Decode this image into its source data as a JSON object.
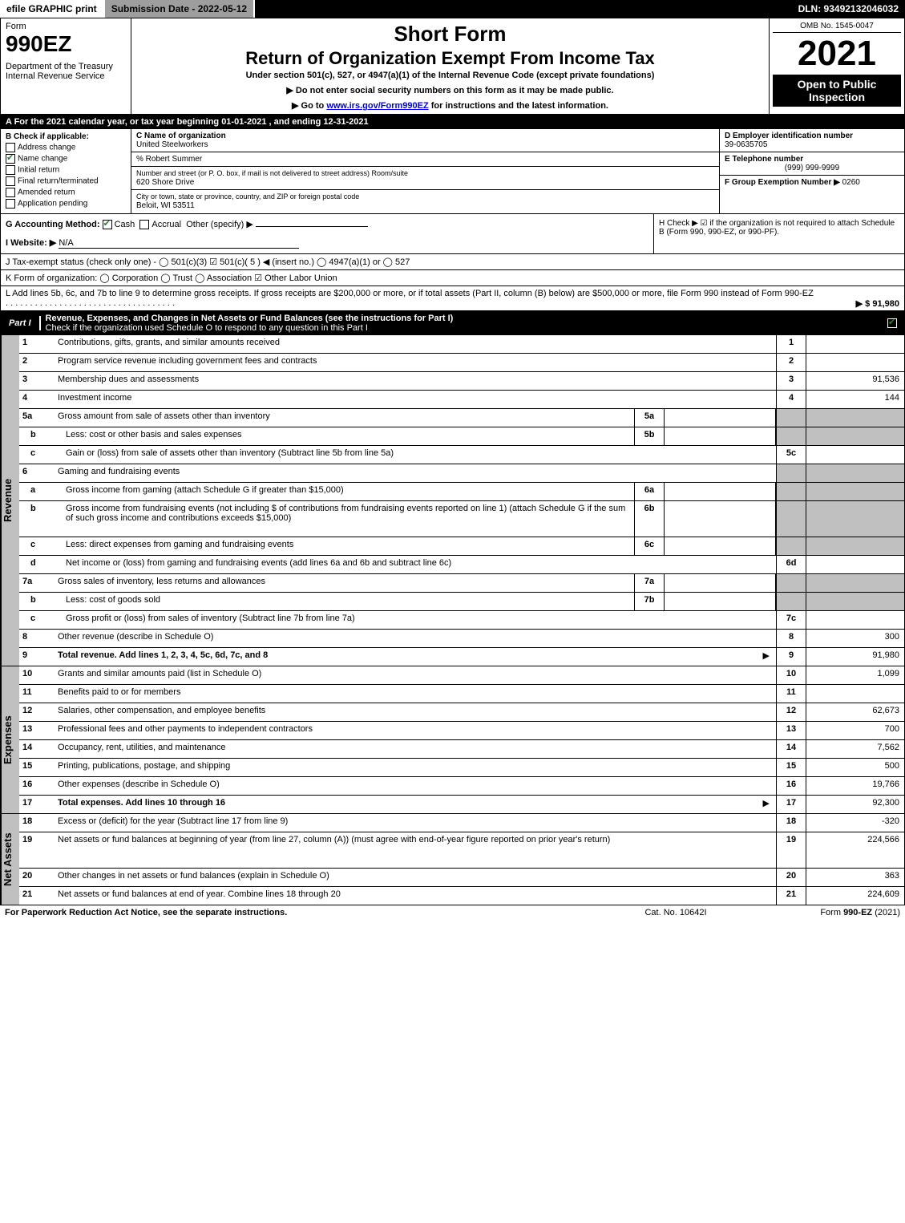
{
  "topbar": {
    "efile": "efile GRAPHIC print",
    "submission": "Submission Date - 2022-05-12",
    "dln": "DLN: 93492132046032"
  },
  "header": {
    "form_word": "Form",
    "form_no": "990EZ",
    "dept": "Department of the Treasury\nInternal Revenue Service",
    "short_form": "Short Form",
    "return_title": "Return of Organization Exempt From Income Tax",
    "under": "Under section 501(c), 527, or 4947(a)(1) of the Internal Revenue Code (except private foundations)",
    "instr1": "▶ Do not enter social security numbers on this form as it may be made public.",
    "instr2_pre": "▶ Go to ",
    "instr2_link": "www.irs.gov/Form990EZ",
    "instr2_post": " for instructions and the latest information.",
    "omb": "OMB No. 1545-0047",
    "year": "2021",
    "badge": "Open to Public Inspection"
  },
  "lineA": "A  For the 2021 calendar year, or tax year beginning 01-01-2021 , and ending 12-31-2021",
  "boxB": {
    "title": "B  Check if applicable:",
    "items": [
      {
        "label": "Address change",
        "checked": false
      },
      {
        "label": "Name change",
        "checked": true
      },
      {
        "label": "Initial return",
        "checked": false
      },
      {
        "label": "Final return/terminated",
        "checked": false
      },
      {
        "label": "Amended return",
        "checked": false
      },
      {
        "label": "Application pending",
        "checked": false
      }
    ]
  },
  "boxC": {
    "name_label": "C Name of organization",
    "name": "United Steelworkers",
    "care_of": "% Robert Summer",
    "street_label": "Number and street (or P. O. box, if mail is not delivered to street address)      Room/suite",
    "street": "620 Shore Drive",
    "city_label": "City or town, state or province, country, and ZIP or foreign postal code",
    "city": "Beloit, WI  53511"
  },
  "boxD": {
    "ein_label": "D Employer identification number",
    "ein": "39-0635705",
    "tel_label": "E Telephone number",
    "tel": "(999) 999-9999",
    "group_label": "F Group Exemption Number  ▶",
    "group": "0260"
  },
  "lineG": {
    "label": "G Accounting Method:",
    "cash": "Cash",
    "accrual": "Accrual",
    "other": "Other (specify) ▶"
  },
  "lineH": "H  Check ▶ ☑ if the organization is not required to attach Schedule B (Form 990, 990-EZ, or 990-PF).",
  "lineI": {
    "label": "I Website: ▶",
    "val": "N/A"
  },
  "lineJ": "J Tax-exempt status (check only one) - ◯ 501(c)(3)  ☑ 501(c)( 5 ) ◀ (insert no.)  ◯ 4947(a)(1) or  ◯ 527",
  "lineK": "K Form of organization:  ◯ Corporation  ◯ Trust  ◯ Association  ☑ Other Labor Union",
  "lineL": {
    "text": "L Add lines 5b, 6c, and 7b to line 9 to determine gross receipts. If gross receipts are $200,000 or more, or if total assets (Part II, column (B) below) are $500,000 or more, file Form 990 instead of Form 990-EZ",
    "amount": "▶ $ 91,980"
  },
  "part1": {
    "tag": "Part I",
    "title": "Revenue, Expenses, and Changes in Net Assets or Fund Balances (see the instructions for Part I)",
    "sub": "Check if the organization used Schedule O to respond to any question in this Part I"
  },
  "revenue": {
    "label": "Revenue",
    "rows": [
      {
        "n": "1",
        "desc": "Contributions, gifts, grants, and similar amounts received",
        "rnum": "1",
        "rval": ""
      },
      {
        "n": "2",
        "desc": "Program service revenue including government fees and contracts",
        "rnum": "2",
        "rval": ""
      },
      {
        "n": "3",
        "desc": "Membership dues and assessments",
        "rnum": "3",
        "rval": "91,536"
      },
      {
        "n": "4",
        "desc": "Investment income",
        "rnum": "4",
        "rval": "144"
      },
      {
        "n": "5a",
        "desc": "Gross amount from sale of assets other than inventory",
        "mid": "5a",
        "shade": true
      },
      {
        "n": "b",
        "sub": true,
        "desc": "Less: cost or other basis and sales expenses",
        "mid": "5b",
        "shade": true
      },
      {
        "n": "c",
        "sub": true,
        "desc": "Gain or (loss) from sale of assets other than inventory (Subtract line 5b from line 5a)",
        "rnum": "5c",
        "rval": ""
      },
      {
        "n": "6",
        "desc": "Gaming and fundraising events",
        "shade_r": true
      },
      {
        "n": "a",
        "sub": true,
        "desc": "Gross income from gaming (attach Schedule G if greater than $15,000)",
        "mid": "6a",
        "shade": true
      },
      {
        "n": "b",
        "sub": true,
        "desc": "Gross income from fundraising events (not including $                      of contributions from fundraising events reported on line 1) (attach Schedule G if the sum of such gross income and contributions exceeds $15,000)",
        "mid": "6b",
        "shade": true,
        "tall": true
      },
      {
        "n": "c",
        "sub": true,
        "desc": "Less: direct expenses from gaming and fundraising events",
        "mid": "6c",
        "shade": true
      },
      {
        "n": "d",
        "sub": true,
        "desc": "Net income or (loss) from gaming and fundraising events (add lines 6a and 6b and subtract line 6c)",
        "rnum": "6d",
        "rval": ""
      },
      {
        "n": "7a",
        "desc": "Gross sales of inventory, less returns and allowances",
        "mid": "7a",
        "shade": true
      },
      {
        "n": "b",
        "sub": true,
        "desc": "Less: cost of goods sold",
        "mid": "7b",
        "shade": true
      },
      {
        "n": "c",
        "sub": true,
        "desc": "Gross profit or (loss) from sales of inventory (Subtract line 7b from line 7a)",
        "rnum": "7c",
        "rval": ""
      },
      {
        "n": "8",
        "desc": "Other revenue (describe in Schedule O)",
        "rnum": "8",
        "rval": "300"
      },
      {
        "n": "9",
        "desc": "Total revenue. Add lines 1, 2, 3, 4, 5c, 6d, 7c, and 8",
        "rnum": "9",
        "rval": "91,980",
        "arrow": true,
        "bold": true
      }
    ]
  },
  "expenses": {
    "label": "Expenses",
    "rows": [
      {
        "n": "10",
        "desc": "Grants and similar amounts paid (list in Schedule O)",
        "rnum": "10",
        "rval": "1,099"
      },
      {
        "n": "11",
        "desc": "Benefits paid to or for members",
        "rnum": "11",
        "rval": ""
      },
      {
        "n": "12",
        "desc": "Salaries, other compensation, and employee benefits",
        "rnum": "12",
        "rval": "62,673"
      },
      {
        "n": "13",
        "desc": "Professional fees and other payments to independent contractors",
        "rnum": "13",
        "rval": "700"
      },
      {
        "n": "14",
        "desc": "Occupancy, rent, utilities, and maintenance",
        "rnum": "14",
        "rval": "7,562"
      },
      {
        "n": "15",
        "desc": "Printing, publications, postage, and shipping",
        "rnum": "15",
        "rval": "500"
      },
      {
        "n": "16",
        "desc": "Other expenses (describe in Schedule O)",
        "rnum": "16",
        "rval": "19,766"
      },
      {
        "n": "17",
        "desc": "Total expenses. Add lines 10 through 16",
        "rnum": "17",
        "rval": "92,300",
        "arrow": true,
        "bold": true
      }
    ]
  },
  "netassets": {
    "label": "Net Assets",
    "rows": [
      {
        "n": "18",
        "desc": "Excess or (deficit) for the year (Subtract line 17 from line 9)",
        "rnum": "18",
        "rval": "-320"
      },
      {
        "n": "19",
        "desc": "Net assets or fund balances at beginning of year (from line 27, column (A)) (must agree with end-of-year figure reported on prior year's return)",
        "rnum": "19",
        "rval": "224,566",
        "tall": true
      },
      {
        "n": "20",
        "desc": "Other changes in net assets or fund balances (explain in Schedule O)",
        "rnum": "20",
        "rval": "363"
      },
      {
        "n": "21",
        "desc": "Net assets or fund balances at end of year. Combine lines 18 through 20",
        "rnum": "21",
        "rval": "224,609"
      }
    ]
  },
  "footer": {
    "left": "For Paperwork Reduction Act Notice, see the separate instructions.",
    "mid": "Cat. No. 10642I",
    "right_pre": "Form ",
    "right_bold": "990-EZ",
    "right_post": " (2021)"
  },
  "colors": {
    "black": "#000000",
    "white": "#ffffff",
    "gray_bar": "#9e9e9e",
    "shade": "#c0c0c0",
    "check_green": "#2e7d32",
    "link": "#0000ee"
  }
}
